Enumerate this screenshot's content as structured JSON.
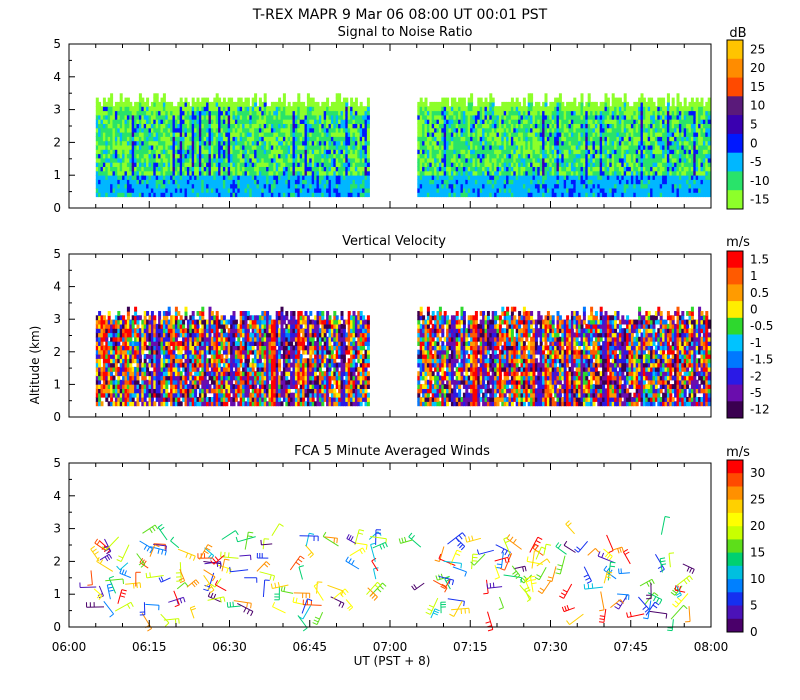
{
  "figure": {
    "header": "T-REX   MAPR   9 Mar 06   08:00 UT   00:01   PST",
    "xlabel": "UT  (PST + 8)",
    "ylabel": "Altitude (km)"
  },
  "chart_data": [
    {
      "type": "heatmap",
      "title": "Signal to Noise Ratio",
      "unit": "dB",
      "ylim": [
        0,
        5
      ],
      "yticks": [
        "0",
        "1",
        "2",
        "3",
        "4",
        "5"
      ],
      "xlim": [
        "06:00",
        "08:00"
      ],
      "data_gap": [
        "06:56",
        "07:05"
      ],
      "coverage_top_km": 3.2,
      "colorbar": {
        "labels": [
          "25",
          "20",
          "15",
          "10",
          "5",
          "0",
          "-5",
          "-10",
          "-15"
        ],
        "colors": [
          "#ffc400",
          "#ff8c00",
          "#ff4a00",
          "#5a1a7a",
          "#3a00b0",
          "#0018ff",
          "#00b7ff",
          "#29e36a",
          "#8dff2a"
        ]
      }
    },
    {
      "type": "heatmap",
      "title": "Vertical Velocity",
      "unit": "m/s",
      "ylim": [
        0,
        5
      ],
      "yticks": [
        "0",
        "1",
        "2",
        "3",
        "4",
        "5"
      ],
      "xlim": [
        "06:00",
        "08:00"
      ],
      "data_gap": [
        "06:56",
        "07:05"
      ],
      "coverage_top_km": 3.1,
      "colorbar": {
        "labels": [
          "1.5",
          "1",
          "0.5",
          "0",
          "-0.5",
          "-1",
          "-1.5",
          "-2",
          "-5",
          "-12"
        ],
        "colors": [
          "#ff0000",
          "#ff5a00",
          "#ff9b00",
          "#ffee00",
          "#2ed82e",
          "#00c3ff",
          "#0078ff",
          "#2a1ae6",
          "#6a0dad",
          "#3a0050"
        ]
      }
    },
    {
      "type": "scatter",
      "title": "FCA 5 Minute Averaged Winds",
      "unit": "m/s",
      "ylim": [
        0,
        5
      ],
      "yticks": [
        "0",
        "1",
        "2",
        "3",
        "4",
        "5"
      ],
      "xticks": [
        "06:00",
        "06:15",
        "06:30",
        "06:45",
        "07:00",
        "07:15",
        "07:30",
        "07:45",
        "08:00"
      ],
      "colorbar": {
        "labels": [
          "30",
          "25",
          "20",
          "15",
          "10",
          "5",
          "0"
        ],
        "colors": [
          "#ff0000",
          "#ff4a00",
          "#ff9000",
          "#ffd000",
          "#ffff00",
          "#c8ff00",
          "#5dde1a",
          "#00d070",
          "#00bfdf",
          "#0080ff",
          "#1530f0",
          "#4b12b8",
          "#4a006a"
        ]
      }
    }
  ]
}
